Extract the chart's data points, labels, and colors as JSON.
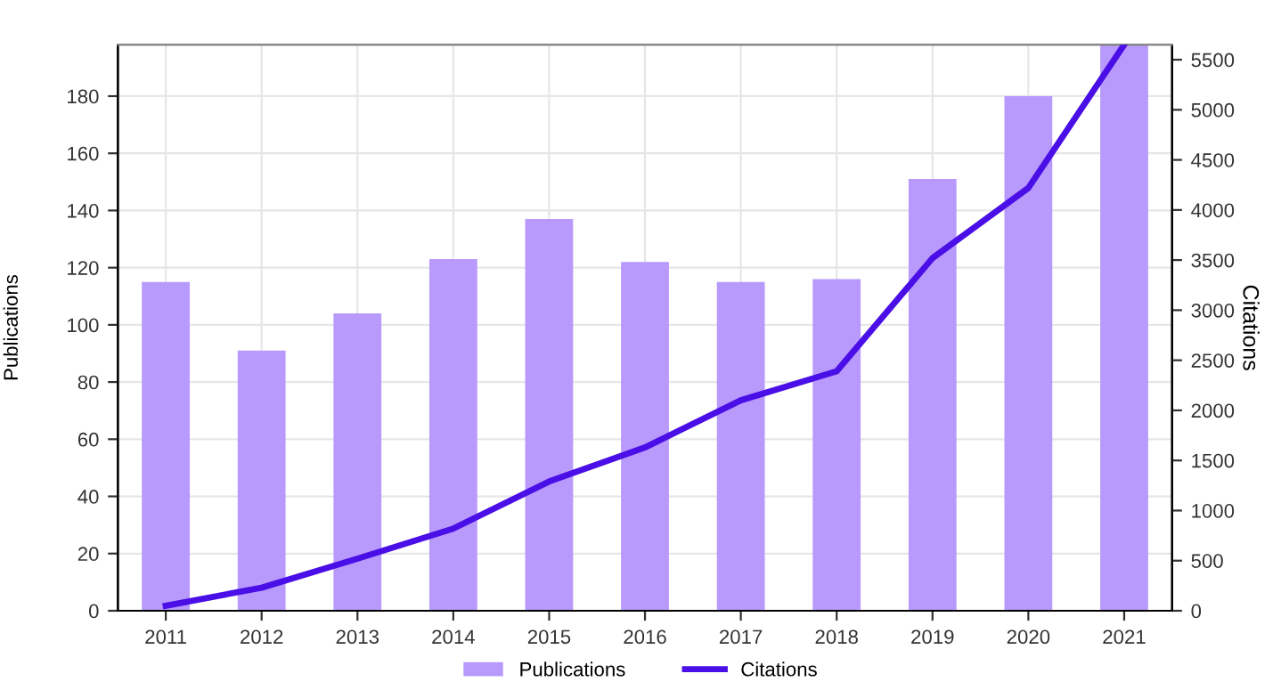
{
  "chart_data": {
    "type": "bar",
    "categories": [
      "2011",
      "2012",
      "2013",
      "2014",
      "2015",
      "2016",
      "2017",
      "2018",
      "2019",
      "2020",
      "2021"
    ],
    "ylabel": "Publications",
    "y2label": "Citations",
    "series": [
      {
        "name": "Publications",
        "color": "#b899fc",
        "values": [
          115,
          91,
          104,
          123,
          137,
          122,
          115,
          116,
          151,
          180,
          198
        ]
      },
      {
        "name": "Citations",
        "type": "line",
        "axis": "y2",
        "color": "#4a0ee6",
        "values": [
          50,
          230,
          520,
          820,
          1290,
          1630,
          2100,
          2390,
          3520,
          4220,
          5650
        ]
      }
    ],
    "ylim": [
      0,
      198
    ],
    "yticks": [
      0,
      20,
      40,
      60,
      80,
      100,
      120,
      140,
      160,
      180
    ],
    "y2lim": [
      0,
      5650
    ],
    "y2ticks": [
      0,
      500,
      1000,
      1500,
      2000,
      2500,
      3000,
      3500,
      4000,
      4500,
      5000,
      5500
    ],
    "grid": true,
    "legend": "bottom",
    "marker": "none",
    "line_style": "solid"
  }
}
